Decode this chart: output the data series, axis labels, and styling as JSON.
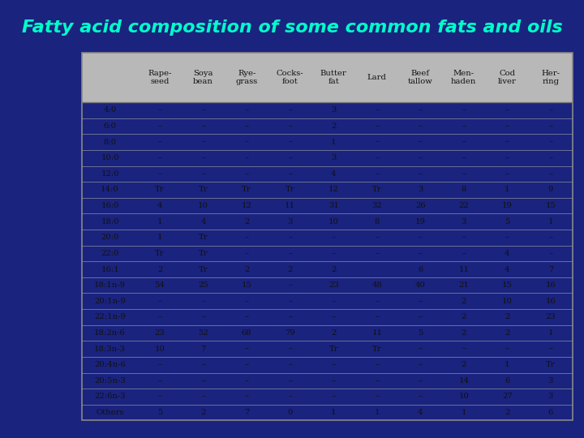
{
  "title": "Fatty acid composition of some common fats and oils",
  "title_color": "#00FFCC",
  "bg_color": "#1a237e",
  "table_bg": "#d0d0d0",
  "col_headers": [
    "Rape-\nseed",
    "Soya\nbean",
    "Rye-\ngrass",
    "Cocks-\nfoot",
    "Butter\nfat",
    "Lard",
    "Beef\ntallow",
    "Men-\nhaden",
    "Cod\nliver",
    "Her-\nring"
  ],
  "row_labels": [
    "4:0",
    "6:0",
    "8:0",
    "10:0",
    "12:0",
    "14:0",
    "16:0",
    "18:0",
    "20:0",
    "22:0",
    "16:1",
    "18:1n-9",
    "20:1n-9",
    "22:1n-9",
    "18:2n-6",
    "18:3n-3",
    "20:4n-6",
    "20:5n-3",
    "22:6n-3",
    "Others"
  ],
  "table_data": [
    [
      "–",
      "–",
      "–",
      "–",
      "3",
      "–",
      "–",
      "–",
      "–",
      "–"
    ],
    [
      "–",
      "–",
      "–",
      "–",
      "2",
      "–",
      "–",
      "–",
      "–",
      "–"
    ],
    [
      "–",
      "–",
      "–",
      "–",
      "1",
      "–",
      "–",
      "–",
      "–",
      "–"
    ],
    [
      "–",
      "–",
      "–",
      "–",
      "3",
      "–",
      "–",
      "–",
      "–",
      "–"
    ],
    [
      "–",
      "–",
      "–",
      "–",
      "4",
      "–",
      "–",
      "–",
      "–",
      "–"
    ],
    [
      "Tr",
      "Tr",
      "Tr",
      "Tr",
      "12",
      "Tr",
      "3",
      "8",
      "1",
      "9"
    ],
    [
      "4",
      "10",
      "12",
      "11",
      "31",
      "32",
      "26",
      "22",
      "19",
      "15"
    ],
    [
      "1",
      "4",
      "2",
      "3",
      "10",
      "8",
      "19",
      "3",
      "5",
      "1"
    ],
    [
      "1",
      "Tr",
      "–",
      "–",
      "–",
      "–",
      "–",
      "–",
      "–",
      "–"
    ],
    [
      "Tr",
      "Tr",
      "–",
      "–",
      "–",
      "–",
      "–",
      "–",
      "4",
      "–"
    ],
    [
      "2",
      "Tr",
      "2",
      "2",
      "2",
      "",
      "6",
      "11",
      "4",
      "7"
    ],
    [
      "54",
      "25",
      "15",
      "–",
      "23",
      "48",
      "40",
      "21",
      "15",
      "16"
    ],
    [
      "–",
      "–",
      "–",
      "–",
      "–",
      "–",
      "–",
      "2",
      "10",
      "16"
    ],
    [
      "–",
      "–",
      "–",
      "–",
      "–",
      "–",
      "–",
      "2",
      "2",
      "23"
    ],
    [
      "23",
      "52",
      "68",
      "79",
      "2",
      "11",
      "5",
      "2",
      "2",
      "1"
    ],
    [
      "10",
      "7",
      "–",
      "–",
      "Tr",
      "Tr",
      "–",
      "–",
      "–",
      "–"
    ],
    [
      "–",
      "–",
      "–",
      "–",
      "–",
      "–",
      "–",
      "2",
      "1",
      "Tr"
    ],
    [
      "–",
      "–",
      "–",
      "–",
      "–",
      "–",
      "–",
      "14",
      "6",
      "3"
    ],
    [
      "–",
      "–",
      "–",
      "–",
      "–",
      "–",
      "–",
      "10",
      "27",
      "3"
    ],
    [
      "5",
      "2",
      "7",
      "0",
      "1",
      "1",
      "4",
      "1",
      "2",
      "6"
    ]
  ]
}
